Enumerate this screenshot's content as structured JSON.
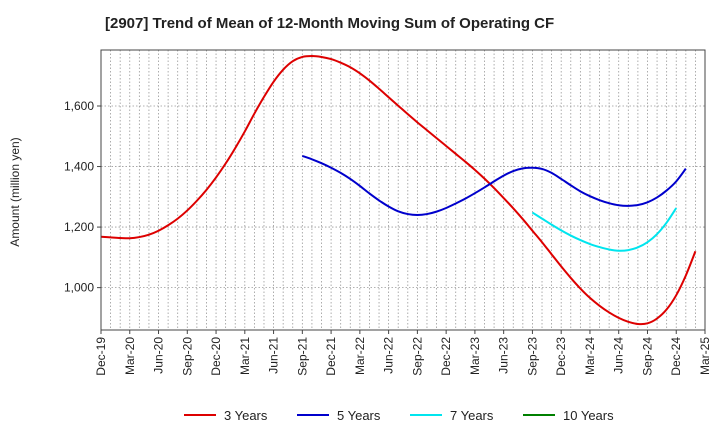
{
  "chart_data": {
    "type": "line",
    "title": "[2907]  Trend of Mean of 12-Month Moving Sum of Operating CF",
    "xlabel": "",
    "ylabel": "Amount (million yen)",
    "ylim": [
      860,
      1785
    ],
    "yticks": [
      1000,
      1200,
      1400,
      1600
    ],
    "ytick_labels": [
      "1,000",
      "1,200",
      "1,400",
      "1,600"
    ],
    "x_categories": [
      "Dec-19",
      "Mar-20",
      "Jun-20",
      "Sep-20",
      "Dec-20",
      "Mar-21",
      "Jun-21",
      "Sep-21",
      "Dec-21",
      "Mar-22",
      "Jun-22",
      "Sep-22",
      "Dec-22",
      "Mar-23",
      "Jun-23",
      "Sep-23",
      "Dec-23",
      "Mar-24",
      "Jun-24",
      "Sep-24",
      "Dec-24",
      "Mar-25"
    ],
    "grid": true,
    "legend_position": "bottom",
    "series": [
      {
        "name": "3 Years",
        "color": "#dd0000",
        "start_index": 0,
        "values": [
          1168,
          1166,
          1164,
          1163,
          1167,
          1175,
          1188,
          1206,
          1228,
          1255,
          1287,
          1323,
          1364,
          1410,
          1461,
          1516,
          1575,
          1630,
          1680,
          1720,
          1748,
          1762,
          1765,
          1762,
          1755,
          1743,
          1728,
          1708,
          1684,
          1657,
          1629,
          1601,
          1573,
          1546,
          1520,
          1494,
          1468,
          1442,
          1416,
          1389,
          1360,
          1329,
          1296,
          1262,
          1226,
          1188,
          1150,
          1110,
          1070,
          1032,
          997,
          966,
          940,
          918,
          900,
          887,
          880,
          882,
          898,
          928,
          975,
          1040,
          1120
        ]
      },
      {
        "name": "5 Years",
        "color": "#0000cc",
        "start_index": 21,
        "values": [
          1435,
          1424,
          1411,
          1396,
          1379,
          1359,
          1336,
          1311,
          1288,
          1268,
          1252,
          1243,
          1240,
          1243,
          1251,
          1263,
          1278,
          1294,
          1312,
          1331,
          1351,
          1370,
          1385,
          1394,
          1396,
          1392,
          1379,
          1359,
          1338,
          1318,
          1302,
          1289,
          1279,
          1272,
          1270,
          1273,
          1282,
          1298,
          1321,
          1351,
          1393
        ]
      },
      {
        "name": "7 Years",
        "color": "#00e5ee",
        "start_index": 45,
        "values": [
          1248,
          1228,
          1208,
          1189,
          1172,
          1157,
          1144,
          1134,
          1126,
          1122,
          1124,
          1133,
          1150,
          1177,
          1215,
          1263
        ]
      },
      {
        "name": "10 Years",
        "color": "#008000",
        "start_index": 0,
        "values": []
      }
    ]
  }
}
